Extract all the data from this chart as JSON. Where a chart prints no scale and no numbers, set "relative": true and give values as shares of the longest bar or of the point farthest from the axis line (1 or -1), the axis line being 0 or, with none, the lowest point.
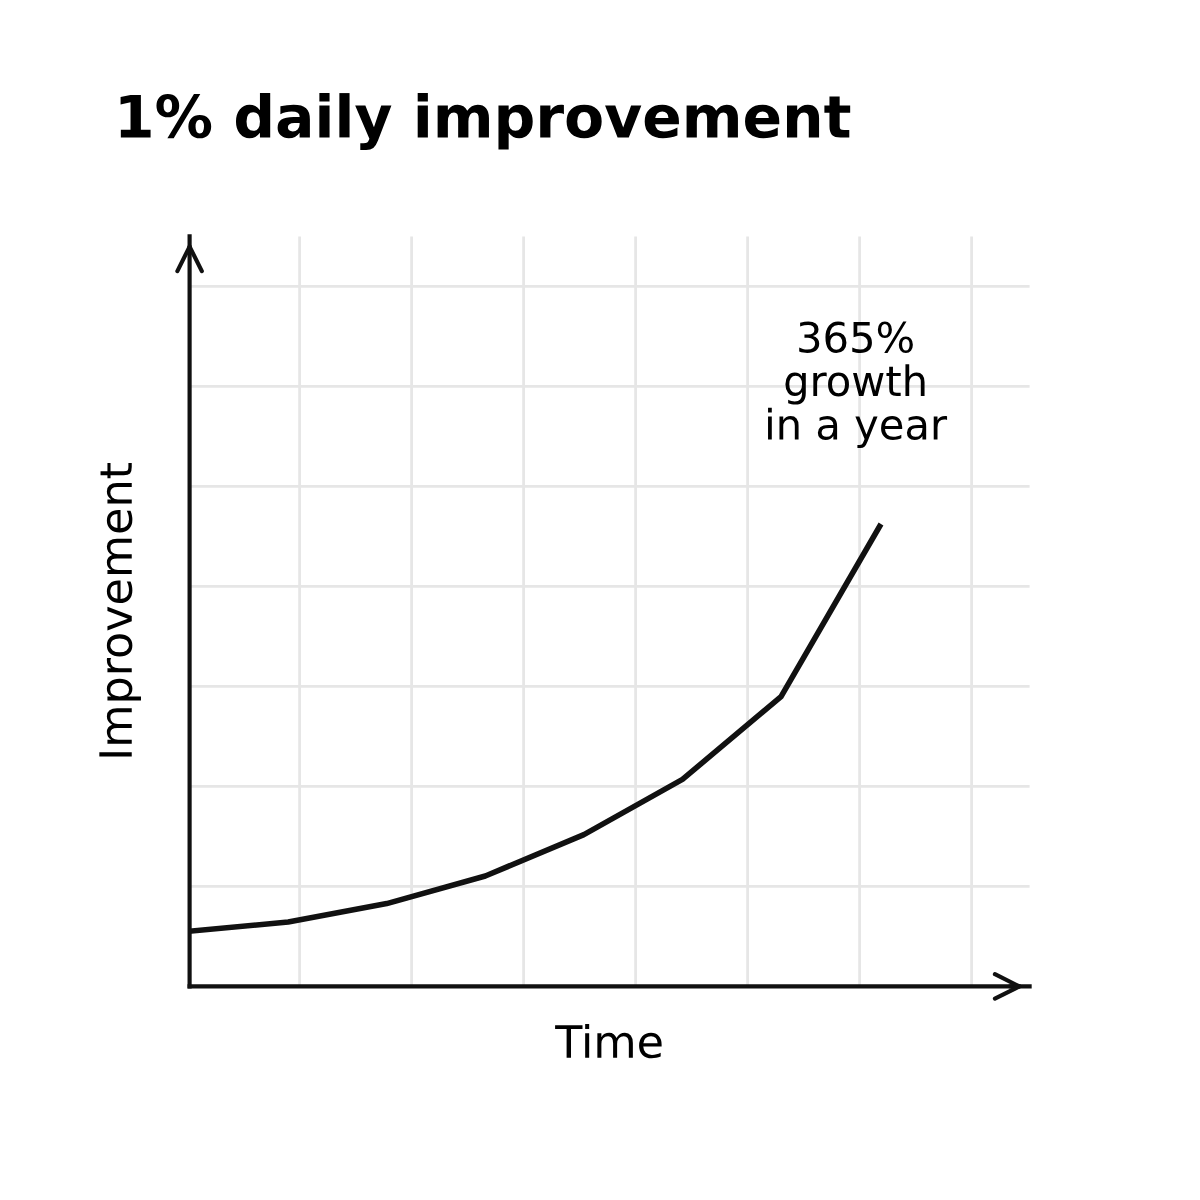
{
  "chart_data": {
    "type": "line",
    "title": "1% daily improvement",
    "xlabel": "Time",
    "ylabel": "Improvement",
    "categories": [
      null,
      null,
      null,
      null,
      null,
      null,
      null,
      null
    ],
    "relative": true,
    "grid": true,
    "marker": "none",
    "line_style": "solid",
    "series": [
      {
        "color": "#111111",
        "values": [
          0.12,
          0.14,
          0.18,
          0.24,
          0.33,
          0.45,
          0.63,
          1.0
        ]
      }
    ],
    "annotations": [
      "365%\ngrowth\nin a year"
    ]
  }
}
